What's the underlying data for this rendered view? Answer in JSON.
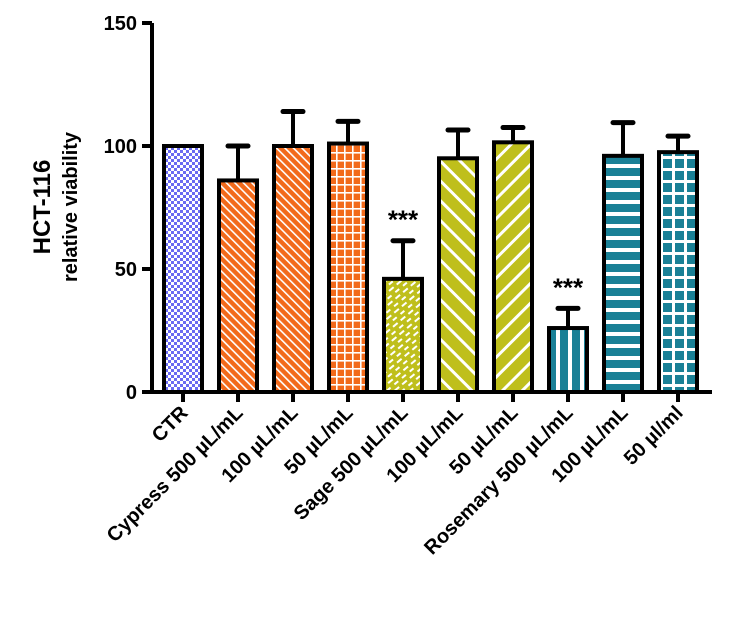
{
  "chart_data": {
    "type": "bar",
    "title": "",
    "ylabel": "HCT-116",
    "ylabel_sub": "relative viability",
    "xlabel": "",
    "ylim": [
      0,
      150
    ],
    "yticks": [
      "0",
      "50",
      "100",
      "150"
    ],
    "grid": false,
    "categories": [
      "CTR",
      "Cypress 500 µL/mL",
      "100 µL/mL",
      "50 µL/mL",
      "Sage 500 µL/mL",
      "100 µL/mL",
      "50 µL/mL",
      "Rosemary 500 µL/mL",
      "100 µL/mL",
      "50 µl/ml"
    ],
    "values": [
      100,
      86,
      100,
      101,
      46,
      95,
      101.5,
      26,
      96,
      97.5
    ],
    "error_upper": [
      0,
      14,
      14,
      9,
      15.5,
      11.5,
      6,
      8,
      13.5,
      6.5
    ],
    "annotations": [
      "",
      "",
      "",
      "",
      "***",
      "",
      "",
      "***",
      "",
      ""
    ],
    "colors": [
      "#6a6af2",
      "#f26a1b",
      "#f26a1b",
      "#f26a1b",
      "#bfbf1c",
      "#bfbf1c",
      "#bfbf1c",
      "#1a8096",
      "#1a8096",
      "#1a8096"
    ],
    "patterns": [
      "checker",
      "diag-fine",
      "diag-fine",
      "grid",
      "brick",
      "diag-wide",
      "diag-wide",
      "vstripe",
      "hstripe",
      "grid-wide"
    ]
  }
}
